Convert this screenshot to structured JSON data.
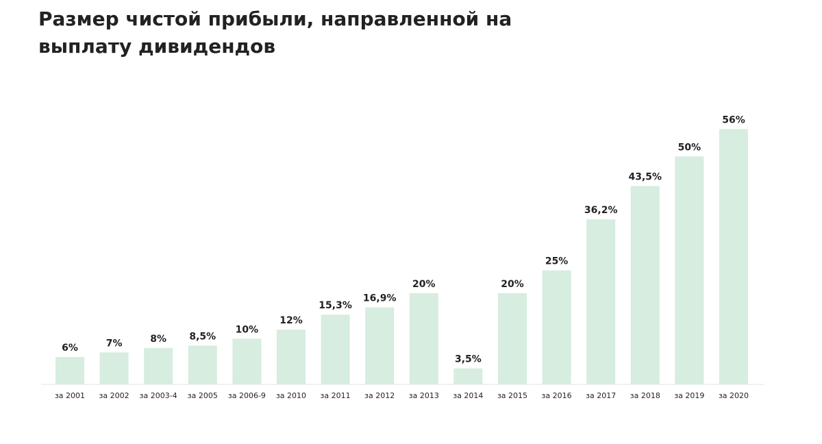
{
  "colors": {
    "bar": "#d6ede0",
    "axis": "#e6e6e6",
    "text": "#222222"
  },
  "chart_data": {
    "type": "bar",
    "title": "Размер чистой прибыли, направленной на выплату дивидендов",
    "categories": [
      "за 2001",
      "за 2002",
      "за 2003-4",
      "за 2005",
      "за 2006-9",
      "за 2010",
      "за 2011",
      "за 2012",
      "за 2013",
      "за 2014",
      "за 2015",
      "за 2016",
      "за 2017",
      "за 2018",
      "за 2019",
      "за 2020"
    ],
    "values": [
      6,
      7,
      8,
      8.5,
      10,
      12,
      15.3,
      16.9,
      20,
      3.5,
      20,
      25,
      36.2,
      43.5,
      50,
      56
    ],
    "labels": [
      "6%",
      "7%",
      "8%",
      "8,5%",
      "10%",
      "12%",
      "15,3%",
      "16,9%",
      "20%",
      "3,5%",
      "20%",
      "25%",
      "36,2%",
      "43,5%",
      "50%",
      "56%"
    ],
    "xlabel": "",
    "ylabel": "",
    "ylim": [
      0,
      56
    ],
    "grid": false,
    "legend": "none"
  }
}
